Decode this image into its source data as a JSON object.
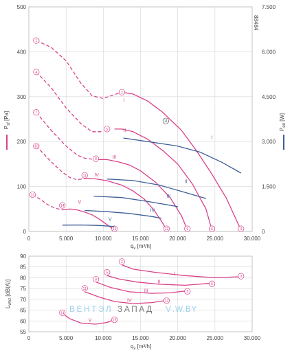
{
  "chart_data": [
    {
      "type": "line",
      "id": "upper",
      "title": "",
      "doc_id": "88484",
      "xlim": [
        0,
        30000
      ],
      "x_ticks": [
        "0",
        "5.000",
        "10.000",
        "15.000",
        "20.000",
        "25.000",
        "30.000"
      ],
      "xlabel": "q",
      "xlabel_sub": "v",
      "xlabel_unit": "[m³/h]",
      "ylim_left": [
        0,
        500
      ],
      "y_left_ticks": [
        "0",
        "100",
        "200",
        "300",
        "400",
        "500"
      ],
      "ylabel_left": "P",
      "ylabel_left_sub": "sf",
      "ylabel_left_unit": "[Pa]",
      "ylim_right": [
        0,
        7500
      ],
      "y_right_ticks": [
        "0",
        "1.500",
        "3.000",
        "4.500",
        "6.000",
        "7.500"
      ],
      "ylabel_right": "P",
      "ylabel_right_sub": "ed",
      "ylabel_right_unit": "[W]",
      "colors": {
        "pressure": "#d9418a",
        "power": "#3d5f9a",
        "axis": "#999999",
        "grid": "#d6d6d6",
        "text": "#444444"
      },
      "pressure_series": [
        {
          "name": "I",
          "label_at": [
            12700,
            289
          ],
          "points": [
            [
              1000,
              425
            ],
            [
              3000,
              410
            ],
            [
              5000,
              380
            ],
            [
              7000,
              330
            ],
            [
              8500,
              302
            ],
            [
              10000,
              296
            ],
            [
              11000,
              302
            ],
            [
              12500,
              310
            ],
            [
              14000,
              306
            ],
            [
              16000,
              290
            ],
            [
              18000,
              265
            ],
            [
              20500,
              225
            ],
            [
              22500,
              180
            ],
            [
              24500,
              130
            ],
            [
              26500,
              75
            ],
            [
              28500,
              3
            ]
          ],
          "dashed_until": 12500,
          "markers": [
            {
              "x": 1000,
              "y": 425,
              "label": "1"
            },
            {
              "x": 12500,
              "y": 310,
              "label": "2"
            },
            {
              "x": 28500,
              "y": 6,
              "label": "3"
            }
          ]
        },
        {
          "name": "II",
          "label_at": [
            12700,
            222
          ],
          "points": [
            [
              1000,
              355
            ],
            [
              3000,
              320
            ],
            [
              5000,
              275
            ],
            [
              7000,
              240
            ],
            [
              8500,
              222
            ],
            [
              10000,
              222
            ],
            [
              11500,
              228
            ],
            [
              12500,
              228
            ],
            [
              14000,
              222
            ],
            [
              16000,
              205
            ],
            [
              18000,
              180
            ],
            [
              20000,
              150
            ],
            [
              22000,
              105
            ],
            [
              23800,
              50
            ],
            [
              24600,
              3
            ]
          ],
          "dashed_until": 10500,
          "markers": [
            {
              "x": 1000,
              "y": 355,
              "label": "4"
            },
            {
              "x": 10500,
              "y": 228,
              "label": "5"
            },
            {
              "x": 24600,
              "y": 6,
              "label": "6"
            }
          ]
        },
        {
          "name": "III",
          "label_at": [
            11200,
            162
          ],
          "points": [
            [
              1000,
              265
            ],
            [
              3000,
              225
            ],
            [
              5000,
              190
            ],
            [
              6500,
              170
            ],
            [
              7500,
              163
            ],
            [
              9000,
              160
            ],
            [
              10500,
              160
            ],
            [
              12000,
              155
            ],
            [
              13500,
              148
            ],
            [
              15000,
              135
            ],
            [
              17000,
              110
            ],
            [
              19000,
              75
            ],
            [
              20500,
              35
            ],
            [
              21300,
              3
            ]
          ],
          "dashed_until": 9000,
          "markers": [
            {
              "x": 1000,
              "y": 265,
              "label": "7"
            },
            {
              "x": 9000,
              "y": 162,
              "label": "8"
            },
            {
              "x": 21300,
              "y": 6,
              "label": "9"
            }
          ]
        },
        {
          "name": "IV",
          "label_at": [
            8800,
            122
          ],
          "points": [
            [
              1000,
              190
            ],
            [
              3000,
              155
            ],
            [
              4500,
              132
            ],
            [
              5500,
              120
            ],
            [
              6500,
              115
            ],
            [
              7500,
              118
            ],
            [
              9000,
              117
            ],
            [
              10500,
              113
            ],
            [
              12500,
              103
            ],
            [
              14000,
              90
            ],
            [
              15500,
              72
            ],
            [
              16800,
              48
            ],
            [
              18000,
              18
            ],
            [
              18500,
              3
            ]
          ],
          "dashed_until": 7500,
          "markers": [
            {
              "x": 1000,
              "y": 190,
              "label": "10"
            },
            {
              "x": 7500,
              "y": 125,
              "label": "11"
            },
            {
              "x": 18500,
              "y": 6,
              "label": "12"
            }
          ]
        },
        {
          "name": "V",
          "label_at": [
            6600,
            62
          ],
          "points": [
            [
              500,
              82
            ],
            [
              1500,
              72
            ],
            [
              2500,
              60
            ],
            [
              3500,
              52
            ],
            [
              4500,
              48
            ],
            [
              5500,
              50
            ],
            [
              6500,
              48
            ],
            [
              7500,
              43
            ],
            [
              8500,
              37
            ],
            [
              9500,
              27
            ],
            [
              10500,
              15
            ],
            [
              11500,
              3
            ]
          ],
          "dashed_until": 4500,
          "markers": [
            {
              "x": 500,
              "y": 82,
              "label": "13"
            },
            {
              "x": 4500,
              "y": 58,
              "label": "14"
            },
            {
              "x": 11500,
              "y": 6,
              "label": "15"
            }
          ]
        }
      ],
      "power_series": [
        {
          "name": "I",
          "label_at": [
            24500,
            3080
          ],
          "right_axis_units": "W",
          "points": [
            [
              12700,
              3120
            ],
            [
              16000,
              3000
            ],
            [
              20000,
              2850
            ],
            [
              23000,
              2650
            ],
            [
              26000,
              2300
            ],
            [
              28500,
              1950
            ]
          ]
        },
        {
          "name": "II",
          "label_at": [
            20900,
            1620
          ],
          "right_axis_units": "W",
          "points": [
            [
              10500,
              1750
            ],
            [
              14000,
              1700
            ],
            [
              17500,
              1550
            ],
            [
              21000,
              1300
            ],
            [
              23800,
              1100
            ]
          ]
        },
        {
          "name": "III",
          "label_at": [
            18500,
            1120
          ],
          "right_axis_units": "W",
          "points": [
            [
              8700,
              1180
            ],
            [
              12500,
              1130
            ],
            [
              16000,
              1000
            ],
            [
              20000,
              830
            ]
          ]
        },
        {
          "name": "IV",
          "label_at": [
            16300,
            650
          ],
          "right_axis_units": "W",
          "points": [
            [
              7500,
              700
            ],
            [
              10500,
              660
            ],
            [
              13500,
              600
            ],
            [
              16500,
              500
            ],
            [
              17800,
              440
            ]
          ]
        },
        {
          "name": "V",
          "label_at": [
            10700,
            360
          ],
          "right_axis_units": "W",
          "points": [
            [
              4500,
              210
            ],
            [
              7000,
              215
            ],
            [
              9500,
              200
            ],
            [
              11500,
              165
            ]
          ]
        }
      ],
      "unlabeled_marker": {
        "label": "11",
        "x": 18400,
        "y": 246,
        "note": "circled marker on power curve I region"
      }
    },
    {
      "type": "line",
      "id": "lower",
      "title": "",
      "xlim": [
        0,
        30000
      ],
      "x_ticks": [
        "0",
        "5.000",
        "10.000",
        "15.000",
        "20.000",
        "25.000",
        "30.000"
      ],
      "xlabel": "q",
      "xlabel_sub": "v",
      "xlabel_unit": "[m³/h]",
      "ylim": [
        55,
        90
      ],
      "y_ticks": [
        "55",
        "60",
        "65",
        "70",
        "75",
        "80",
        "85",
        "90"
      ],
      "ylabel": "L",
      "ylabel_sub": "WA2",
      "ylabel_unit": "[dB(A)]",
      "series": [
        {
          "name": "I",
          "label_at": [
            19500,
            81.2
          ],
          "points": [
            [
              12500,
              86
            ],
            [
              14000,
              84
            ],
            [
              17000,
              82.5
            ],
            [
              21000,
              81
            ],
            [
              25000,
              80
            ],
            [
              28500,
              80.5
            ]
          ],
          "markers": [
            {
              "x": 12500,
              "y": 87.5,
              "label": "2"
            },
            {
              "x": 28500,
              "y": 80.7,
              "label": "3"
            }
          ]
        },
        {
          "name": "II",
          "label_at": [
            17300,
            77.5
          ],
          "points": [
            [
              10500,
              81
            ],
            [
              12000,
              79.5
            ],
            [
              14500,
              78
            ],
            [
              17500,
              77
            ],
            [
              21000,
              76.5
            ],
            [
              24600,
              77.5
            ]
          ],
          "markers": [
            {
              "x": 10500,
              "y": 82.5,
              "label": "5"
            },
            {
              "x": 24600,
              "y": 77.2,
              "label": "6"
            }
          ]
        },
        {
          "name": "III",
          "label_at": [
            15500,
            73.3
          ],
          "points": [
            [
              9000,
              78
            ],
            [
              11000,
              75.5
            ],
            [
              13500,
              73.5
            ],
            [
              16500,
              72.8
            ],
            [
              19000,
              73
            ],
            [
              21300,
              74
            ]
          ],
          "markers": [
            {
              "x": 9000,
              "y": 79.3,
              "label": "8"
            },
            {
              "x": 21300,
              "y": 73.7,
              "label": "9"
            }
          ]
        },
        {
          "name": "IV",
          "label_at": [
            13200,
            68.9
          ],
          "points": [
            [
              7500,
              73.5
            ],
            [
              9500,
              71
            ],
            [
              11500,
              69
            ],
            [
              14000,
              68
            ],
            [
              16500,
              68.5
            ],
            [
              18500,
              69.5
            ]
          ],
          "markers": [
            {
              "x": 7500,
              "y": 75.1,
              "label": "11"
            },
            {
              "x": 18500,
              "y": 69.4,
              "label": "12"
            }
          ]
        },
        {
          "name": "V",
          "label_at": [
            8000,
            59.6
          ],
          "points": [
            [
              4500,
              63.5
            ],
            [
              5500,
              61
            ],
            [
              7000,
              59
            ],
            [
              9000,
              58.5
            ],
            [
              10500,
              59.3
            ],
            [
              11500,
              60.5
            ]
          ],
          "markers": [
            {
              "x": 4500,
              "y": 63.8,
              "label": "14"
            },
            {
              "x": 11500,
              "y": 60.5,
              "label": "15"
            }
          ]
        }
      ]
    }
  ],
  "watermark": {
    "part1": "ВЕНТЭЛ",
    "part2": "ЗАПАД",
    "part3": "V",
    "part4": ".W.BY"
  }
}
